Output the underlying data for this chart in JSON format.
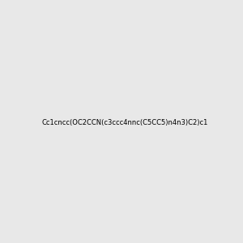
{
  "smiles": "Cc1cncc(OC2CCN(c3ccc4nnc(C5CC5)n4n3)C2)c1",
  "background_color": "#e8e8e8",
  "bond_color": "#000000",
  "nitrogen_color": "#0000ff",
  "oxygen_color": "#ff0000",
  "figsize": [
    3.0,
    3.0
  ],
  "dpi": 100
}
